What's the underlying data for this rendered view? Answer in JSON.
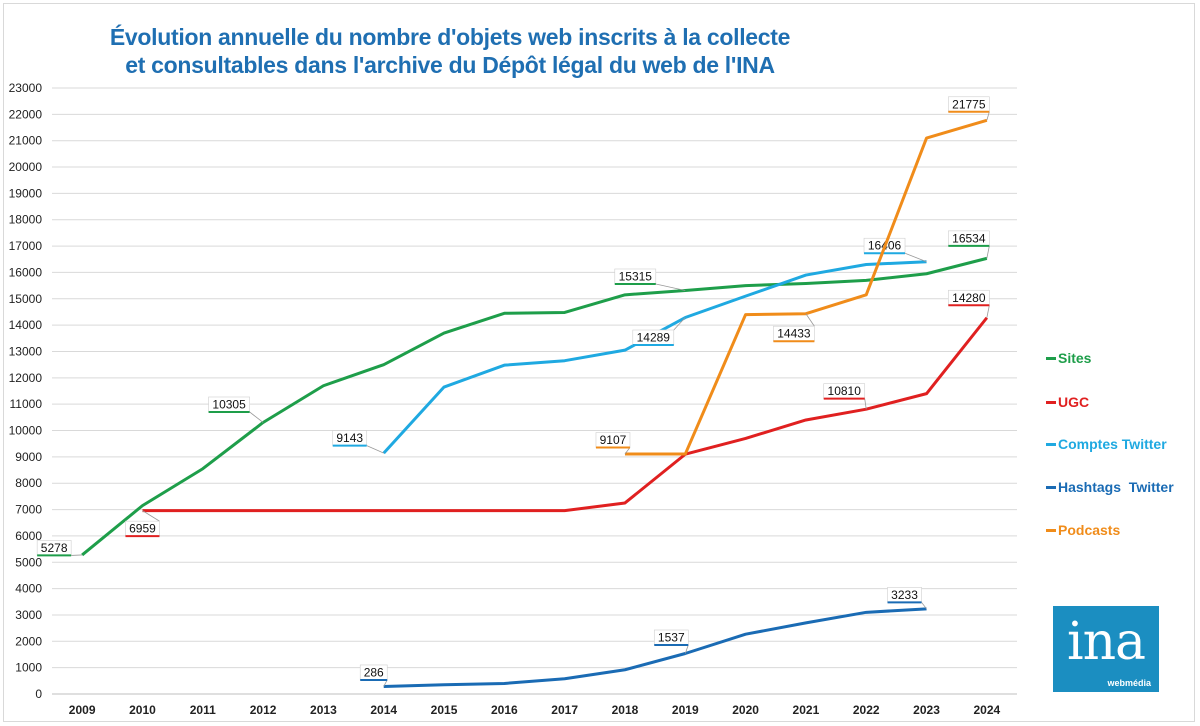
{
  "title": {
    "line1": "Évolution annuelle du nombre d'objets web inscrits à la collecte",
    "line2": "et consultables dans l'archive du Dépôt légal du web de l'INA"
  },
  "logo": {
    "text": "ina",
    "subtext": "webmédia"
  },
  "chart_data": {
    "type": "line",
    "title": "Évolution annuelle du nombre d'objets web inscrits à la collecte et consultables dans l'archive du Dépôt légal du web de l'INA",
    "categories": [
      "2009",
      "2010",
      "2011",
      "2012",
      "2013",
      "2014",
      "2015",
      "2016",
      "2017",
      "2018",
      "2019",
      "2020",
      "2021",
      "2022",
      "2023",
      "2024"
    ],
    "ylim": [
      0,
      23000
    ],
    "ytick_step": 1000,
    "grid": true,
    "legend_position": "right",
    "series": [
      {
        "name": "Sites",
        "color": "#1e9e4a",
        "values": [
          5278,
          7150,
          8550,
          10305,
          11700,
          12500,
          13700,
          14450,
          14480,
          15150,
          15315,
          15500,
          15580,
          15700,
          15950,
          16534
        ],
        "labels": [
          {
            "index": 0,
            "text": "5278"
          },
          {
            "index": 3,
            "text": "10305"
          },
          {
            "index": 10,
            "text": "15315"
          },
          {
            "index": 15,
            "text": "16534"
          }
        ]
      },
      {
        "name": "UGC",
        "color": "#e02020",
        "values": [
          null,
          6959,
          6959,
          6959,
          6959,
          6959,
          6959,
          6959,
          6959,
          7250,
          9100,
          9700,
          10400,
          10810,
          11400,
          14280
        ],
        "labels": [
          {
            "index": 1,
            "text": "6959"
          },
          {
            "index": 13,
            "text": "10810"
          },
          {
            "index": 15,
            "text": "14280"
          }
        ]
      },
      {
        "name": "Comptes Twitter",
        "color": "#1fa9e1",
        "values": [
          null,
          null,
          null,
          null,
          null,
          9143,
          11650,
          12480,
          12650,
          13050,
          14289,
          15100,
          15900,
          16300,
          16406,
          null
        ],
        "labels": [
          {
            "index": 5,
            "text": "9143"
          },
          {
            "index": 10,
            "text": "14289"
          },
          {
            "index": 14,
            "text": "16406"
          }
        ]
      },
      {
        "name": "Hashtags  Twitter",
        "color": "#1a6bb4",
        "values": [
          null,
          null,
          null,
          null,
          null,
          286,
          350,
          400,
          580,
          920,
          1537,
          2270,
          2700,
          3100,
          3233,
          null
        ],
        "labels": [
          {
            "index": 5,
            "text": "286"
          },
          {
            "index": 10,
            "text": "1537"
          },
          {
            "index": 14,
            "text": "3233"
          }
        ]
      },
      {
        "name": "Podcasts",
        "color": "#f08c1a",
        "values": [
          null,
          null,
          null,
          null,
          null,
          null,
          null,
          null,
          null,
          9107,
          9107,
          14400,
          14433,
          15150,
          21100,
          21775
        ],
        "labels": [
          {
            "index": 9,
            "text": "9107"
          },
          {
            "index": 12,
            "text": "14433"
          },
          {
            "index": 15,
            "text": "21775"
          }
        ]
      }
    ]
  }
}
